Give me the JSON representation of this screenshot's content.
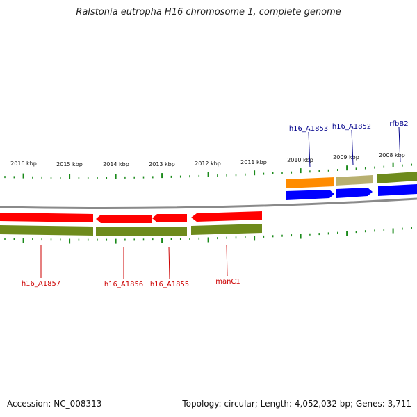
{
  "title": "Ralstonia eutropha H16 chromosome 1, complete genome",
  "footer": {
    "accession": "Accession: NC_008313",
    "summary": "Topology: circular; Length: 4,052,032 bp; Genes: 3,711"
  },
  "colors": {
    "backbone": "#808080",
    "forward_cds": "#0000ff",
    "reverse_cds": "#ff0000",
    "gene_feature": "#6e8b1c",
    "orange_feature": "#ff8c00",
    "khaki_feature": "#b8b070",
    "tick": "#1a8a1a",
    "forward_label": "#00008b",
    "reverse_label": "#cc0000"
  },
  "scale_labels": [
    {
      "id": "2016",
      "text": "2016 kbp"
    },
    {
      "id": "2015",
      "text": "2015 kbp"
    },
    {
      "id": "2014",
      "text": "2014 kbp"
    },
    {
      "id": "2013",
      "text": "2013 kbp"
    },
    {
      "id": "2012",
      "text": "2012 kbp"
    },
    {
      "id": "2011",
      "text": "2011 kbp"
    },
    {
      "id": "2010",
      "text": "2010 kbp"
    },
    {
      "id": "2009",
      "text": "2009 kbp"
    },
    {
      "id": "2008",
      "text": "2008 kbp"
    }
  ],
  "forward_genes": [
    {
      "id": "h16_A1853",
      "label": "h16_A1853"
    },
    {
      "id": "h16_A1852",
      "label": "h16_A1852"
    },
    {
      "id": "rfbB2",
      "label": "rfbB2"
    }
  ],
  "reverse_genes": [
    {
      "id": "h16_A1857",
      "label": "h16_A1857"
    },
    {
      "id": "h16_A1856",
      "label": "h16_A1856"
    },
    {
      "id": "h16_A1855",
      "label": "h16_A1855"
    },
    {
      "id": "manC1",
      "label": "manC1"
    }
  ]
}
